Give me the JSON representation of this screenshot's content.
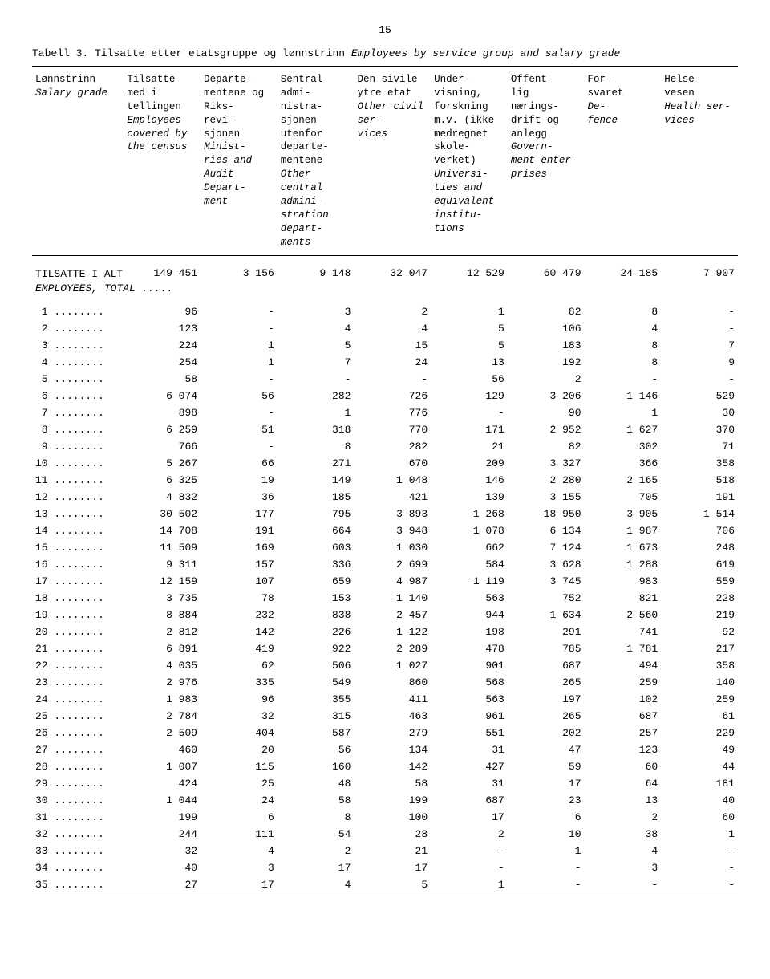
{
  "page_number": "15",
  "title_plain": "Tabell 3. Tilsatte etter etatsgruppe  og lønnstrinn",
  "title_italic": "Employees by service group and salary grade",
  "columns": [
    {
      "no": "Lønnstrinn",
      "en": "Salary grade"
    },
    {
      "no": "Tilsatte med i tellingen",
      "en": "Employees covered by the census"
    },
    {
      "no": "Departe-\nmentene og Riks-\nrevi-\nsjonen",
      "en": "Minist-\nries and Audit Depart-\nment"
    },
    {
      "no": "Sentral-\nadmi-\nnistra-\nsjonen utenfor departe-\nmentene",
      "en": "Other central admini-\nstration depart-\nments"
    },
    {
      "no": "Den sivile ytre etat",
      "en": "Other civil ser-\nvices"
    },
    {
      "no": "Under-\nvisning, forskning m.v. (ikke medregnet skole-\nverket)",
      "en": "Universi-\nties and equivalent institu-\ntions"
    },
    {
      "no": "Offent-\nlig nærings-\ndrift og anlegg",
      "en": "Govern-\nment enter-\nprises"
    },
    {
      "no": "For-\nsvaret",
      "en": "De-\nfence"
    },
    {
      "no": "Helse-\nvesen",
      "en": "Health ser-\nvices"
    }
  ],
  "total_label_no": "TILSATTE I ALT",
  "total_label_en": "EMPLOYEES, TOTAL .....",
  "total_row": [
    "149 451",
    "3 156",
    "9 148",
    "32 047",
    "12 529",
    "60 479",
    "24 185",
    "7 907"
  ],
  "rows": [
    {
      "g": "1",
      "v": [
        "96",
        "-",
        "3",
        "2",
        "1",
        "82",
        "8",
        "-"
      ]
    },
    {
      "g": "2",
      "v": [
        "123",
        "-",
        "4",
        "4",
        "5",
        "106",
        "4",
        "-"
      ]
    },
    {
      "g": "3",
      "v": [
        "224",
        "1",
        "5",
        "15",
        "5",
        "183",
        "8",
        "7"
      ]
    },
    {
      "g": "4",
      "v": [
        "254",
        "1",
        "7",
        "24",
        "13",
        "192",
        "8",
        "9"
      ]
    },
    {
      "g": "5",
      "v": [
        "58",
        "-",
        "-",
        "-",
        "56",
        "2",
        "-",
        "-"
      ]
    },
    {
      "g": "6",
      "v": [
        "6 074",
        "56",
        "282",
        "726",
        "129",
        "3 206",
        "1 146",
        "529"
      ]
    },
    {
      "g": "7",
      "v": [
        "898",
        "-",
        "1",
        "776",
        "-",
        "90",
        "1",
        "30"
      ]
    },
    {
      "g": "8",
      "v": [
        "6 259",
        "51",
        "318",
        "770",
        "171",
        "2 952",
        "1 627",
        "370"
      ]
    },
    {
      "g": "9",
      "v": [
        "766",
        "-",
        "8",
        "282",
        "21",
        "82",
        "302",
        "71"
      ]
    },
    {
      "g": "10",
      "v": [
        "5 267",
        "66",
        "271",
        "670",
        "209",
        "3 327",
        "366",
        "358"
      ]
    },
    {
      "g": "11",
      "v": [
        "6 325",
        "19",
        "149",
        "1 048",
        "146",
        "2 280",
        "2 165",
        "518"
      ]
    },
    {
      "g": "12",
      "v": [
        "4 832",
        "36",
        "185",
        "421",
        "139",
        "3 155",
        "705",
        "191"
      ]
    },
    {
      "g": "13",
      "v": [
        "30 502",
        "177",
        "795",
        "3 893",
        "1 268",
        "18 950",
        "3 905",
        "1 514"
      ]
    },
    {
      "g": "14",
      "v": [
        "14 708",
        "191",
        "664",
        "3 948",
        "1 078",
        "6 134",
        "1 987",
        "706"
      ]
    },
    {
      "g": "15",
      "v": [
        "11 509",
        "169",
        "603",
        "1 030",
        "662",
        "7 124",
        "1 673",
        "248"
      ]
    },
    {
      "g": "16",
      "v": [
        "9 311",
        "157",
        "336",
        "2 699",
        "584",
        "3 628",
        "1 288",
        "619"
      ]
    },
    {
      "g": "17",
      "v": [
        "12 159",
        "107",
        "659",
        "4 987",
        "1 119",
        "3 745",
        "983",
        "559"
      ]
    },
    {
      "g": "18",
      "v": [
        "3 735",
        "78",
        "153",
        "1 140",
        "563",
        "752",
        "821",
        "228"
      ]
    },
    {
      "g": "19",
      "v": [
        "8 884",
        "232",
        "838",
        "2 457",
        "944",
        "1 634",
        "2 560",
        "219"
      ]
    },
    {
      "g": "20",
      "v": [
        "2 812",
        "142",
        "226",
        "1 122",
        "198",
        "291",
        "741",
        "92"
      ]
    },
    {
      "g": "21",
      "v": [
        "6 891",
        "419",
        "922",
        "2 289",
        "478",
        "785",
        "1 781",
        "217"
      ]
    },
    {
      "g": "22",
      "v": [
        "4 035",
        "62",
        "506",
        "1 027",
        "901",
        "687",
        "494",
        "358"
      ]
    },
    {
      "g": "23",
      "v": [
        "2 976",
        "335",
        "549",
        "860",
        "568",
        "265",
        "259",
        "140"
      ]
    },
    {
      "g": "24",
      "v": [
        "1 983",
        "96",
        "355",
        "411",
        "563",
        "197",
        "102",
        "259"
      ]
    },
    {
      "g": "25",
      "v": [
        "2 784",
        "32",
        "315",
        "463",
        "961",
        "265",
        "687",
        "61"
      ]
    },
    {
      "g": "26",
      "v": [
        "2 509",
        "404",
        "587",
        "279",
        "551",
        "202",
        "257",
        "229"
      ]
    },
    {
      "g": "27",
      "v": [
        "460",
        "20",
        "56",
        "134",
        "31",
        "47",
        "123",
        "49"
      ]
    },
    {
      "g": "28",
      "v": [
        "1 007",
        "115",
        "160",
        "142",
        "427",
        "59",
        "60",
        "44"
      ]
    },
    {
      "g": "29",
      "v": [
        "424",
        "25",
        "48",
        "58",
        "31",
        "17",
        "64",
        "181"
      ]
    },
    {
      "g": "30",
      "v": [
        "1 044",
        "24",
        "58",
        "199",
        "687",
        "23",
        "13",
        "40"
      ]
    },
    {
      "g": "31",
      "v": [
        "199",
        "6",
        "8",
        "100",
        "17",
        "6",
        "2",
        "60"
      ]
    },
    {
      "g": "32",
      "v": [
        "244",
        "111",
        "54",
        "28",
        "2",
        "10",
        "38",
        "1"
      ]
    },
    {
      "g": "33",
      "v": [
        "32",
        "4",
        "2",
        "21",
        "-",
        "1",
        "4",
        "-"
      ]
    },
    {
      "g": "34",
      "v": [
        "40",
        "3",
        "17",
        "17",
        "-",
        "-",
        "3",
        "-"
      ]
    },
    {
      "g": "35",
      "v": [
        "27",
        "17",
        "4",
        "5",
        "1",
        "-",
        "-",
        "-"
      ]
    }
  ],
  "row_dots": " ........"
}
